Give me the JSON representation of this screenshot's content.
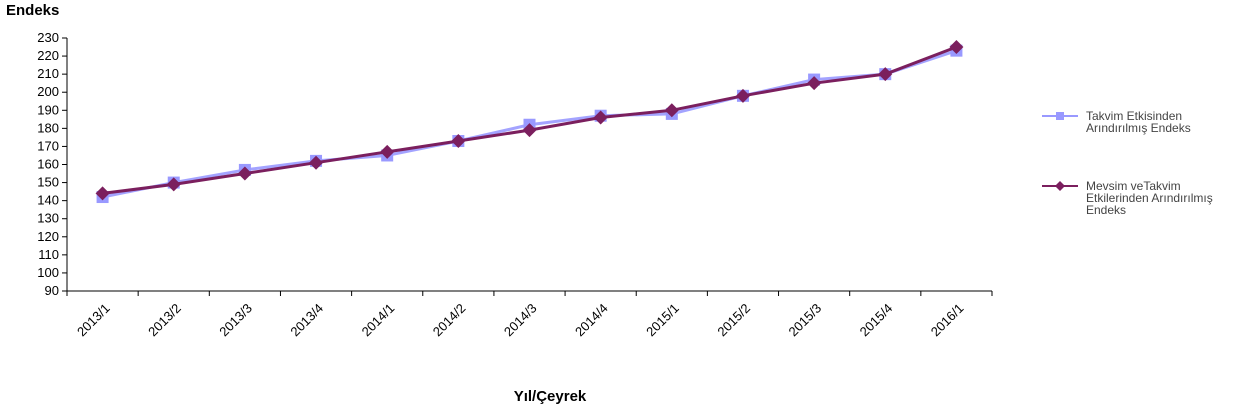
{
  "chart_data": {
    "type": "line",
    "ylabel": "Endeks",
    "xlabel": "Yıl/Çeyrek",
    "ylim": [
      90,
      230
    ],
    "ytick_step": 10,
    "grid": false,
    "legend_position": "right",
    "categories": [
      "2013/1",
      "2013/2",
      "2013/3",
      "2013/4",
      "2014/1",
      "2014/2",
      "2014/3",
      "2014/4",
      "2015/1",
      "2015/2",
      "2015/3",
      "2015/4",
      "2016/1"
    ],
    "series": [
      {
        "name": "Takvim Etkisinden Arındırılmış Endeks",
        "color": "#9999ff",
        "marker": "square",
        "values": [
          142,
          150,
          157,
          162,
          165,
          173,
          182,
          187,
          188,
          198,
          207,
          210,
          223
        ]
      },
      {
        "name": "Mevsim veTakvim Etkilerinden Arındırılmış Endeks",
        "color": "#7b1f5e",
        "marker": "diamond",
        "values": [
          144,
          149,
          155,
          161,
          167,
          173,
          179,
          186,
          190,
          198,
          205,
          210,
          225
        ]
      }
    ]
  }
}
